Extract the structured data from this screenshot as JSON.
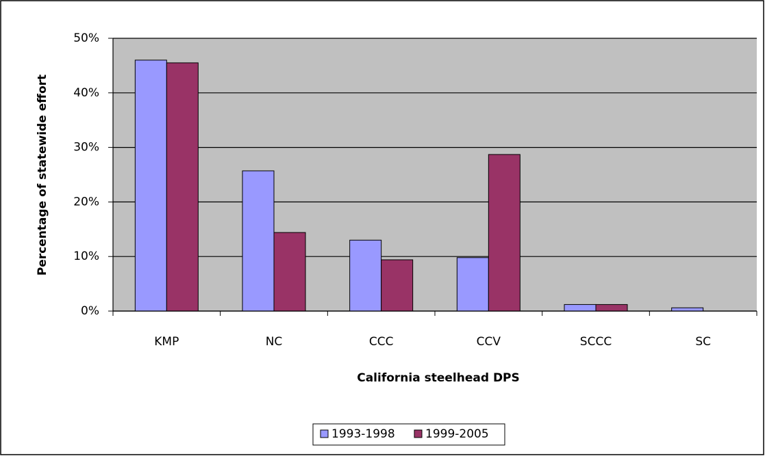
{
  "chart_data": {
    "type": "bar",
    "x_label": "California steelhead DPS",
    "y_label": "Percentage of statewide effort",
    "categories": [
      "KMP",
      "NC",
      "CCC",
      "CCV",
      "SCCC",
      "SC"
    ],
    "series": [
      {
        "name": "1993-1998",
        "color": "#9999ff",
        "values": [
          46.0,
          25.7,
          13.0,
          9.8,
          1.2,
          0.6
        ]
      },
      {
        "name": "1999-2005",
        "color": "#993366",
        "values": [
          45.5,
          14.4,
          9.4,
          28.7,
          1.2,
          0
        ]
      }
    ],
    "ylim": [
      0,
      50
    ],
    "yticks": [
      {
        "value": 0,
        "label": "0%"
      },
      {
        "value": 10,
        "label": "10%"
      },
      {
        "value": 20,
        "label": "20%"
      },
      {
        "value": 30,
        "label": "30%"
      },
      {
        "value": 40,
        "label": "40%"
      },
      {
        "value": 50,
        "label": "50%"
      }
    ],
    "grid": true,
    "plot_background": "#c0c0c0",
    "legend": "bottom"
  }
}
